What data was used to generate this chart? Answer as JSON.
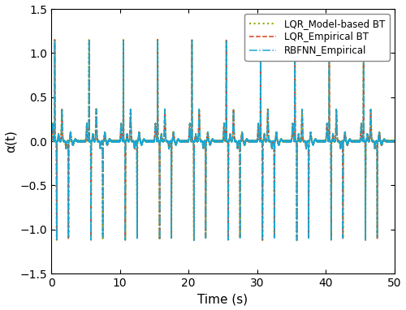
{
  "title": "",
  "xlabel": "Time (s)",
  "ylabel": "α(t)",
  "xlim": [
    0,
    50
  ],
  "ylim": [
    -1.5,
    1.5
  ],
  "yticks": [
    -1.5,
    -1.0,
    -0.5,
    0,
    0.5,
    1.0,
    1.5
  ],
  "xticks": [
    0,
    10,
    20,
    30,
    40,
    50
  ],
  "legend": [
    "RBFNN_Empirical",
    "LQR_Empirical BT",
    "LQR_Model-based BT"
  ],
  "line1_color": "#1AA7D4",
  "line1_style": "-.",
  "line1_lw": 1.1,
  "line2_color": "#D4401A",
  "line2_style": "--",
  "line2_lw": 1.1,
  "line3_color": "#99AA00",
  "line3_style": ":",
  "line3_lw": 1.5,
  "background_color": "#ffffff",
  "grid": false
}
